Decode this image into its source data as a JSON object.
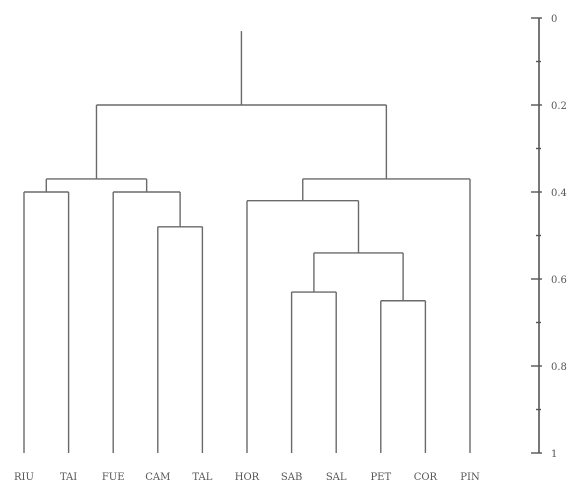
{
  "dendrogram": {
    "leaves": [
      "RIU",
      "TAI",
      "FUE",
      "CAM",
      "TAL",
      "HOR",
      "SAB",
      "SAL",
      "PET",
      "COR",
      "PIN"
    ],
    "axis": {
      "range": [
        0,
        1
      ],
      "direction": "top-to-bottom",
      "ticks": [
        {
          "value": 0,
          "label": "0"
        },
        {
          "value": 0.2,
          "label": "0.2"
        },
        {
          "value": 0.4,
          "label": "0.4"
        },
        {
          "value": 0.6,
          "label": "0.6"
        },
        {
          "value": 0.8,
          "label": "0.8"
        },
        {
          "value": 1,
          "label": "1"
        }
      ],
      "minor_ticks": [
        0.1,
        0.3,
        0.5,
        0.7,
        0.9
      ]
    },
    "root_height": 0.2,
    "root_stem_top": 0.03,
    "merges": [
      {
        "left": "RIU",
        "right": "TAI",
        "height": 0.4
      },
      {
        "left": "TAL",
        "right": "CAM",
        "height": 0.48
      },
      {
        "left": "FUE",
        "right": "TAL",
        "height": 0.4
      },
      {
        "left": "RIU",
        "right": "FUE",
        "height": 0.37
      },
      {
        "left": "SAB",
        "right": "SAL",
        "height": 0.63
      },
      {
        "left": "PET",
        "right": "COR",
        "height": 0.65
      },
      {
        "left": "SAB",
        "right": "PET",
        "height": 0.54
      },
      {
        "left": "HOR",
        "right": "SAB",
        "height": 0.42
      },
      {
        "left": "HOR",
        "right": "PIN",
        "height": 0.37
      },
      {
        "left": "RIU",
        "right": "HOR",
        "height": 0.2
      }
    ]
  }
}
